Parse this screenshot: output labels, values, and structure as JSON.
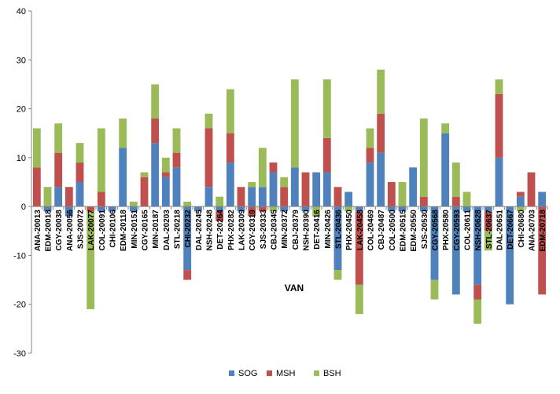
{
  "chart_data": {
    "type": "bar",
    "stacked": true,
    "title": "",
    "xlabel": "VAN",
    "ylabel": "",
    "ylim": [
      -30,
      40
    ],
    "yticks": [
      -30,
      -20,
      -10,
      0,
      10,
      20,
      30,
      40
    ],
    "grid": false,
    "legend_position": "bottom",
    "categories": [
      "ANA-20013",
      "EDM-20018",
      "CGY-20038",
      "ANA-20056",
      "SJS-20072",
      "LAK-20077",
      "COL-20091",
      "CHI-20106",
      "EDM-20118",
      "MIN-20151",
      "CGY-20165",
      "MIN-20187",
      "DAL-20203",
      "STL-20218",
      "CHI-20232",
      "DAL-20245",
      "NSH-20248",
      "DET-20264",
      "PHX-20282",
      "LAK-20309",
      "CGY-20319",
      "SJS-20333",
      "CBJ-20345",
      "MIN-20372",
      "CBJ-20379",
      "NSH-20390",
      "DET-20416",
      "MIN-20426",
      "STL-20436",
      "PHX-20450",
      "LAK-20458",
      "COL-20469",
      "CBJ-20487",
      "COL-20500",
      "EDM-20515",
      "EDM-20550",
      "SJS-20530",
      "CGY-20568",
      "PHX-20580",
      "CGY-20593",
      "COL-20611",
      "NSH-20628",
      "STL-20637",
      "DAL-20651",
      "DET-20667",
      "CHI-20680",
      "ANA-20703",
      "EDM-20718"
    ],
    "series": [
      {
        "name": "SOG",
        "color": "#4F81BD",
        "values": [
          0,
          -1,
          4,
          -2,
          5,
          0,
          -1,
          -1,
          12,
          -1,
          0,
          13,
          6,
          8,
          -13,
          -1,
          4,
          -1,
          9,
          -1,
          4,
          4,
          7,
          -1,
          8,
          -1,
          7,
          7,
          -13,
          3,
          -1,
          9,
          11,
          -1,
          -1,
          8,
          -1,
          -15,
          15,
          -18,
          -1,
          -16,
          -1,
          10,
          -20,
          2,
          0,
          3
        ]
      },
      {
        "name": "MSH",
        "color": "#C0504D",
        "values": [
          8,
          0,
          7,
          4,
          4,
          -1,
          3,
          0,
          0,
          0,
          6,
          5,
          1,
          3,
          -2,
          0,
          12,
          -2,
          6,
          4,
          -2,
          -1,
          2,
          4,
          0,
          7,
          0,
          7,
          4,
          0,
          -15,
          3,
          8,
          5,
          0,
          0,
          2,
          0,
          0,
          2,
          0,
          -3,
          -4,
          13,
          0,
          1,
          7,
          -18
        ]
      },
      {
        "name": "BSH",
        "color": "#9BBB59",
        "values": [
          8,
          4,
          6,
          0,
          4,
          -20,
          13,
          0,
          6,
          1,
          1,
          7,
          3,
          5,
          1,
          0,
          3,
          2,
          9,
          0,
          1,
          8,
          -1,
          2,
          18,
          0,
          -2,
          12,
          -2,
          -1,
          -6,
          4,
          9,
          0,
          5,
          0,
          16,
          -4,
          2,
          7,
          3,
          -5,
          -4,
          3,
          0,
          -1,
          0,
          0
        ]
      }
    ]
  }
}
